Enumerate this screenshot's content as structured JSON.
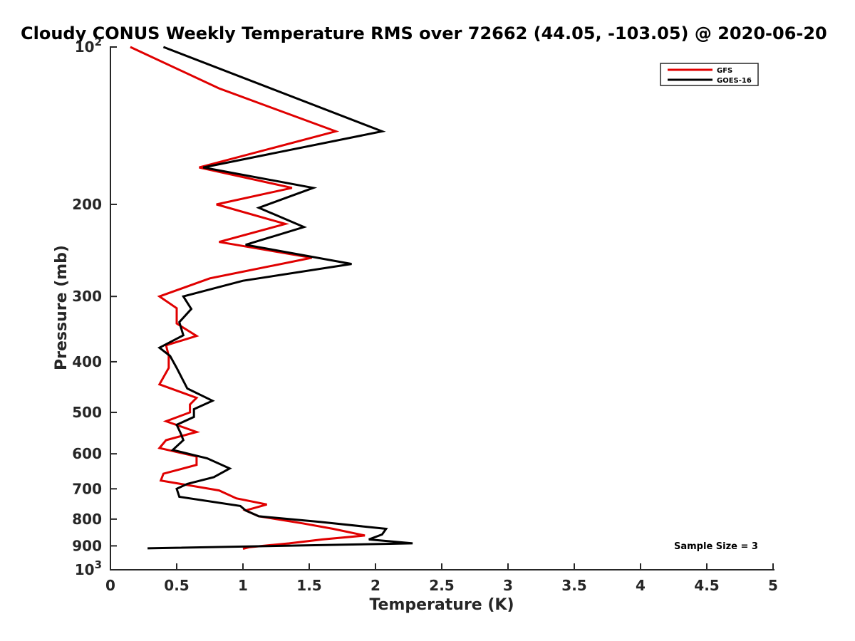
{
  "chart_data": {
    "type": "line",
    "title": "Cloudy CONUS Weekly Temperature RMS over 72662 (44.05, -103.05) @ 2020-06-20",
    "xlabel": "Temperature (K)",
    "ylabel": "Pressure (mb)",
    "xlim": [
      0,
      5
    ],
    "ylim": [
      100,
      1000
    ],
    "y_scale": "log",
    "y_reversed": true,
    "grid": false,
    "legend_position": "top-right",
    "x_ticks": [
      0,
      0.5,
      1,
      1.5,
      2,
      2.5,
      3,
      3.5,
      4,
      4.5,
      5
    ],
    "x_tick_labels": [
      "0",
      "0.5",
      "1",
      "1.5",
      "2",
      "2.5",
      "3",
      "3.5",
      "4",
      "4.5",
      "5"
    ],
    "y_ticks": [
      200,
      300,
      400,
      500,
      600,
      700,
      800,
      900
    ],
    "y_tick_labels": [
      "200",
      "300",
      "400",
      "500",
      "600",
      "700",
      "800",
      "900"
    ],
    "y_end_labels": [
      {
        "value": 100,
        "base": "10",
        "exp": "2"
      },
      {
        "value": 1000,
        "base": "10",
        "exp": "3"
      }
    ],
    "annotation": "Sample Size = 3",
    "series": [
      {
        "name": "GFS",
        "color": "#e00000",
        "points": [
          [
            0.15,
            100
          ],
          [
            0.82,
            120
          ],
          [
            1.7,
            145
          ],
          [
            0.67,
            170
          ],
          [
            1.37,
            186
          ],
          [
            0.8,
            200
          ],
          [
            1.32,
            218
          ],
          [
            0.82,
            236
          ],
          [
            1.52,
            253
          ],
          [
            0.75,
            277
          ],
          [
            0.37,
            300
          ],
          [
            0.5,
            316
          ],
          [
            0.5,
            338
          ],
          [
            0.65,
            357
          ],
          [
            0.42,
            372
          ],
          [
            0.44,
            390
          ],
          [
            0.44,
            411
          ],
          [
            0.37,
            442
          ],
          [
            0.65,
            469
          ],
          [
            0.6,
            483
          ],
          [
            0.6,
            500
          ],
          [
            0.42,
            520
          ],
          [
            0.65,
            545
          ],
          [
            0.42,
            565
          ],
          [
            0.37,
            585
          ],
          [
            0.65,
            607
          ],
          [
            0.65,
            630
          ],
          [
            0.4,
            655
          ],
          [
            0.38,
            675
          ],
          [
            0.82,
            705
          ],
          [
            0.95,
            730
          ],
          [
            1.18,
            750
          ],
          [
            1.02,
            770
          ],
          [
            1.12,
            790
          ],
          [
            1.45,
            815
          ],
          [
            1.68,
            835
          ],
          [
            1.92,
            860
          ],
          [
            1.6,
            875
          ],
          [
            1.35,
            890
          ],
          [
            1.05,
            905
          ],
          [
            1.0,
            912
          ]
        ]
      },
      {
        "name": "GOES-16",
        "color": "#000000",
        "points": [
          [
            0.4,
            100
          ],
          [
            2.05,
            145
          ],
          [
            0.7,
            170
          ],
          [
            1.53,
            186
          ],
          [
            1.12,
            203
          ],
          [
            1.46,
            221
          ],
          [
            1.02,
            239
          ],
          [
            1.82,
            260
          ],
          [
            1.0,
            280
          ],
          [
            0.55,
            300
          ],
          [
            0.61,
            317
          ],
          [
            0.52,
            336
          ],
          [
            0.55,
            356
          ],
          [
            0.37,
            376
          ],
          [
            0.45,
            390
          ],
          [
            0.5,
            411
          ],
          [
            0.58,
            450
          ],
          [
            0.77,
            475
          ],
          [
            0.63,
            493
          ],
          [
            0.63,
            510
          ],
          [
            0.5,
            528
          ],
          [
            0.53,
            548
          ],
          [
            0.55,
            565
          ],
          [
            0.47,
            590
          ],
          [
            0.73,
            612
          ],
          [
            0.9,
            640
          ],
          [
            0.78,
            665
          ],
          [
            0.58,
            685
          ],
          [
            0.5,
            700
          ],
          [
            0.52,
            725
          ],
          [
            0.98,
            755
          ],
          [
            1.02,
            770
          ],
          [
            1.12,
            790
          ],
          [
            1.58,
            810
          ],
          [
            2.08,
            835
          ],
          [
            2.05,
            856
          ],
          [
            1.95,
            875
          ],
          [
            2.28,
            890
          ],
          [
            0.28,
            910
          ]
        ]
      }
    ]
  }
}
